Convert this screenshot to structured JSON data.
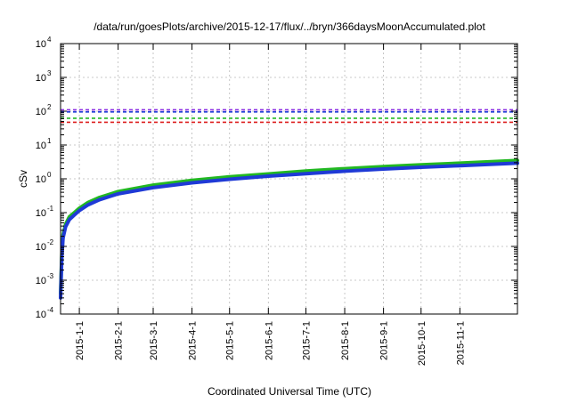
{
  "chart_data": {
    "type": "line",
    "title": "/data/run/goesPlots/archive/2015-12-17/flux/../bryn/366daysMoonAccumulated.plot",
    "xlabel": "Coordinated Universal Time (UTC)",
    "ylabel": "cSv",
    "scale": {
      "y": "log",
      "x": "time"
    },
    "grid": true,
    "xlim": [
      "2014-12-17",
      "2015-12-17"
    ],
    "ylim": [
      0.0001,
      10000
    ],
    "x_ticks": [
      "2015-1-1",
      "2015-2-1",
      "2015-3-1",
      "2015-4-1",
      "2015-5-1",
      "2015-6-1",
      "2015-7-1",
      "2015-8-1",
      "2015-9-1",
      "2015-10-1",
      "2015-11-1"
    ],
    "y_ticks": [
      {
        "base": "10",
        "exp": "-4",
        "value": 0.0001
      },
      {
        "base": "10",
        "exp": "-3",
        "value": 0.001
      },
      {
        "base": "10",
        "exp": "-2",
        "value": 0.01
      },
      {
        "base": "10",
        "exp": "-1",
        "value": 0.1
      },
      {
        "base": "10",
        "exp": "0",
        "value": 1
      },
      {
        "base": "10",
        "exp": "1",
        "value": 10
      },
      {
        "base": "10",
        "exp": "2",
        "value": 100
      },
      {
        "base": "10",
        "exp": "3",
        "value": 1000
      },
      {
        "base": "10",
        "exp": "4",
        "value": 10000
      }
    ],
    "reference_lines": [
      {
        "color": "#8a2be2",
        "y": 110
      },
      {
        "color": "#1f3ad6",
        "y": 95
      },
      {
        "color": "#22b822",
        "y": 62
      },
      {
        "color": "#dd1c1c",
        "y": 47
      }
    ],
    "series": [
      {
        "color": "#22b822",
        "width": 4,
        "x": [
          "2014-12-17",
          "2014-12-18",
          "2014-12-19",
          "2014-12-21",
          "2014-12-24",
          "2014-12-28",
          "2015-01-01",
          "2015-01-08",
          "2015-01-17",
          "2015-02-01",
          "2015-03-01",
          "2015-04-01",
          "2015-05-01",
          "2015-06-01",
          "2015-07-01",
          "2015-08-01",
          "2015-09-01",
          "2015-10-01",
          "2015-11-01",
          "2015-12-17"
        ],
        "y": [
          0.0004,
          0.006,
          0.022,
          0.045,
          0.075,
          0.1,
          0.135,
          0.2,
          0.28,
          0.42,
          0.65,
          0.9,
          1.15,
          1.4,
          1.7,
          2.0,
          2.3,
          2.6,
          2.9,
          3.5
        ]
      },
      {
        "color": "#1f3ad6",
        "width": 4,
        "x": [
          "2014-12-17",
          "2014-12-18",
          "2014-12-19",
          "2014-12-21",
          "2014-12-24",
          "2014-12-28",
          "2015-01-01",
          "2015-01-08",
          "2015-01-17",
          "2015-02-01",
          "2015-03-01",
          "2015-04-01",
          "2015-05-01",
          "2015-06-01",
          "2015-07-01",
          "2015-08-01",
          "2015-09-01",
          "2015-10-01",
          "2015-11-01",
          "2015-12-17"
        ],
        "y": [
          0.0003,
          0.005,
          0.018,
          0.038,
          0.062,
          0.085,
          0.115,
          0.17,
          0.24,
          0.36,
          0.55,
          0.76,
          0.97,
          1.2,
          1.42,
          1.68,
          1.95,
          2.2,
          2.45,
          2.9
        ]
      }
    ]
  }
}
